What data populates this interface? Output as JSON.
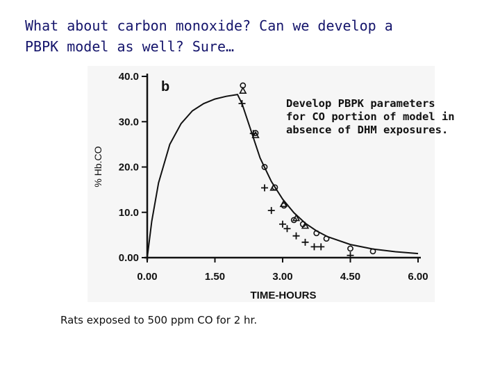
{
  "slide": {
    "title_lines": [
      "What about carbon monoxide? Can we develop a",
      "PBPK model as well?  Sure…"
    ],
    "note_lines": [
      "Develop PBPK parameters",
      "for CO portion of model in",
      "absence of DHM exposures."
    ],
    "caption": "Rats exposed to 500 ppm CO for 2 hr."
  },
  "chart_data": {
    "type": "scatter",
    "panel_label": "b",
    "xlabel": "TIME-HOURS",
    "ylabel": "% Hb.CO",
    "xlim": [
      0,
      6
    ],
    "ylim": [
      0,
      40
    ],
    "x_ticks": [
      "0.00",
      "1.50",
      "3.00",
      "4.50",
      "6.00"
    ],
    "y_ticks": [
      "0.00",
      "10.0",
      "20.0",
      "30.0",
      "40.0"
    ],
    "grid": false,
    "series": [
      {
        "marker": "line",
        "x": [
          0,
          0.1,
          0.25,
          0.5,
          0.75,
          1.0,
          1.25,
          1.5,
          1.75,
          2.0,
          2.1,
          2.3,
          2.5,
          2.75,
          3.0,
          3.25,
          3.5,
          3.75,
          4.0,
          4.5,
          5.0,
          5.5,
          6.0
        ],
        "y": [
          0,
          8.0,
          16.5,
          25.0,
          29.6,
          32.4,
          34.0,
          35.0,
          35.6,
          36.0,
          34.0,
          28.0,
          22.0,
          16.8,
          12.9,
          9.9,
          7.6,
          5.9,
          4.6,
          2.9,
          1.9,
          1.3,
          0.9
        ]
      },
      {
        "marker": "circle",
        "x": [
          2.12,
          2.4,
          2.6,
          2.83,
          3.03,
          3.25,
          3.45,
          3.75,
          3.97,
          4.5,
          5.0
        ],
        "y": [
          38.0,
          27.5,
          20.0,
          15.5,
          11.5,
          8.3,
          7.4,
          5.4,
          4.2,
          2.0,
          1.4
        ]
      },
      {
        "marker": "triangle",
        "x": [
          2.12,
          2.4,
          2.8,
          3.02,
          3.3,
          3.5
        ],
        "y": [
          36.8,
          27.0,
          15.4,
          11.8,
          8.7,
          7.0
        ]
      },
      {
        "marker": "plus",
        "x": [
          2.1,
          2.35,
          2.6,
          2.75,
          3.0,
          3.1,
          3.3,
          3.5,
          3.7,
          3.85,
          4.5
        ],
        "y": [
          34.0,
          27.4,
          15.4,
          10.4,
          7.4,
          6.4,
          4.8,
          3.4,
          2.4,
          2.4,
          0.5
        ]
      }
    ]
  }
}
